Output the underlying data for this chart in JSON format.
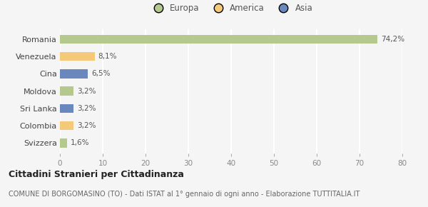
{
  "categories": [
    "Svizzera",
    "Colombia",
    "Sri Lanka",
    "Moldova",
    "Cina",
    "Venezuela",
    "Romania"
  ],
  "values": [
    1.6,
    3.2,
    3.2,
    3.2,
    6.5,
    8.1,
    74.2
  ],
  "labels": [
    "1,6%",
    "3,2%",
    "3,2%",
    "3,2%",
    "6,5%",
    "8,1%",
    "74,2%"
  ],
  "colors": [
    "#b5c98e",
    "#f5c97a",
    "#6b88be",
    "#b5c98e",
    "#6b88be",
    "#f5c97a",
    "#b5c98e"
  ],
  "legend_labels": [
    "Europa",
    "America",
    "Asia"
  ],
  "legend_colors": [
    "#b5c98e",
    "#f5c97a",
    "#6b88be"
  ],
  "xlim": [
    0,
    80
  ],
  "xticks": [
    0,
    10,
    20,
    30,
    40,
    50,
    60,
    70,
    80
  ],
  "title": "Cittadini Stranieri per Cittadinanza",
  "subtitle": "COMUNE DI BORGOMASINO (TO) - Dati ISTAT al 1° gennaio di ogni anno - Elaborazione TUTTITALIA.IT",
  "bg_color": "#f5f5f5",
  "grid_color": "#ffffff",
  "bar_height": 0.52
}
